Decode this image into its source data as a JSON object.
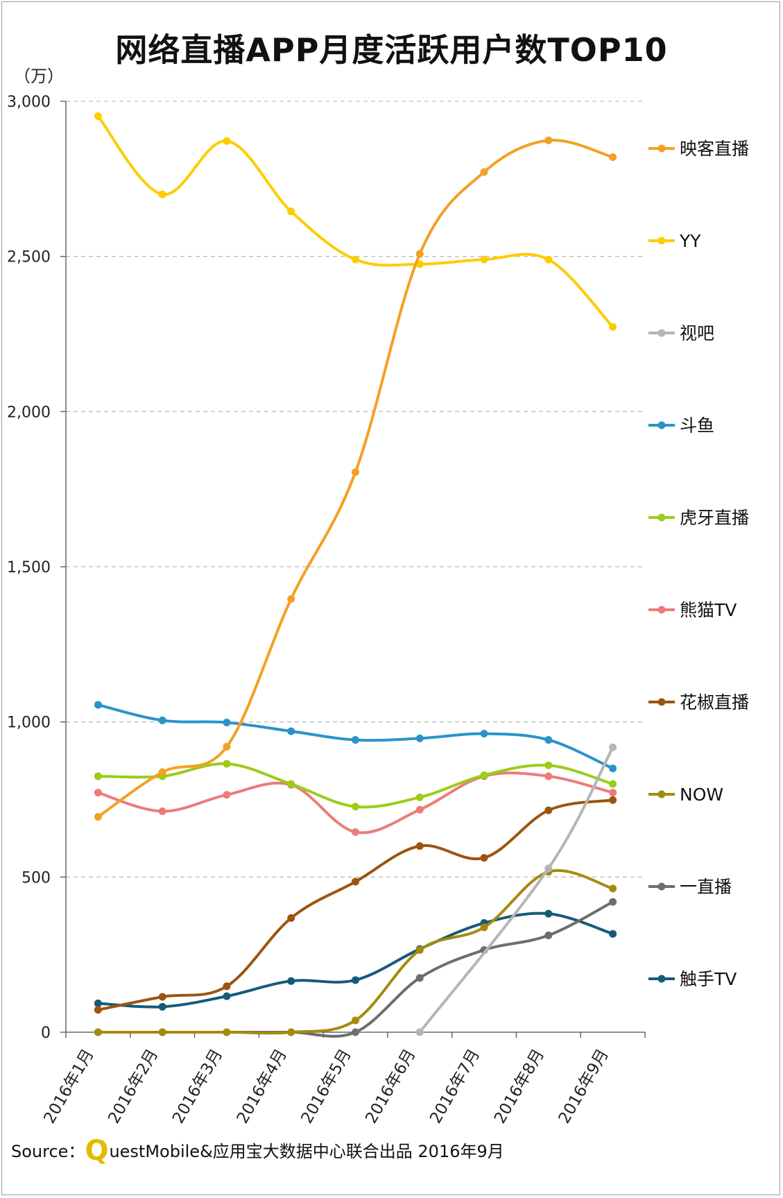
{
  "title": "网络直播APP月度活跃用户数TOP10",
  "source": {
    "prefix": "Source：",
    "logo_letter": "Q",
    "text": "uestMobile&应用宝大数据中心联合出品 2016年9月"
  },
  "chart_data": {
    "type": "line",
    "title": "网络直播APP月度活跃用户数TOP10",
    "ylabel": "（万）",
    "xlabel": "",
    "ylim": [
      0,
      3000
    ],
    "yticks": [
      0,
      500,
      1000,
      1500,
      2000,
      2500,
      3000
    ],
    "ytick_labels": [
      "0",
      "500",
      "1,000",
      "1,500",
      "2,000",
      "2,500",
      "3,000"
    ],
    "grid": true,
    "legend_position": "right",
    "categories": [
      "2016年1月",
      "2016年2月",
      "2016年3月",
      "2016年4月",
      "2016年5月",
      "2016年6月",
      "2016年7月",
      "2016年8月",
      "2016年9月"
    ],
    "series": [
      {
        "name": "映客直播",
        "color": "#f4a023",
        "values": [
          694,
          838,
          920,
          1396,
          1805,
          2508,
          2772,
          2874,
          2820
        ]
      },
      {
        "name": "YY",
        "color": "#fecc00",
        "values": [
          2952,
          2700,
          2872,
          2645,
          2490,
          2475,
          2490,
          2490,
          2273
        ]
      },
      {
        "name": "视吧",
        "color": "#b5b5b5",
        "values": [
          null,
          null,
          null,
          null,
          null,
          0,
          null,
          528,
          918
        ]
      },
      {
        "name": "斗鱼",
        "color": "#2a93c9",
        "values": [
          1055,
          1005,
          998,
          970,
          942,
          947,
          962,
          942,
          850
        ]
      },
      {
        "name": "虎牙直播",
        "color": "#9acd18",
        "values": [
          825,
          825,
          865,
          800,
          727,
          757,
          828,
          860,
          800
        ]
      },
      {
        "name": "熊猫TV",
        "color": "#ec7b7b",
        "values": [
          772,
          712,
          765,
          797,
          645,
          717,
          825,
          825,
          772
        ]
      },
      {
        "name": "花椒直播",
        "color": "#9b5510",
        "values": [
          72,
          114,
          148,
          368,
          485,
          600,
          562,
          715,
          748
        ]
      },
      {
        "name": "NOW",
        "color": "#a58a0e",
        "values": [
          0,
          0,
          0,
          0,
          38,
          265,
          338,
          517,
          463
        ]
      },
      {
        "name": "一直播",
        "color": "#6d6d6d",
        "values": [
          0,
          0,
          0,
          0,
          0,
          175,
          265,
          312,
          420
        ]
      },
      {
        "name": "触手TV",
        "color": "#175a78",
        "values": [
          93,
          82,
          116,
          165,
          168,
          268,
          352,
          382,
          317
        ]
      }
    ]
  }
}
